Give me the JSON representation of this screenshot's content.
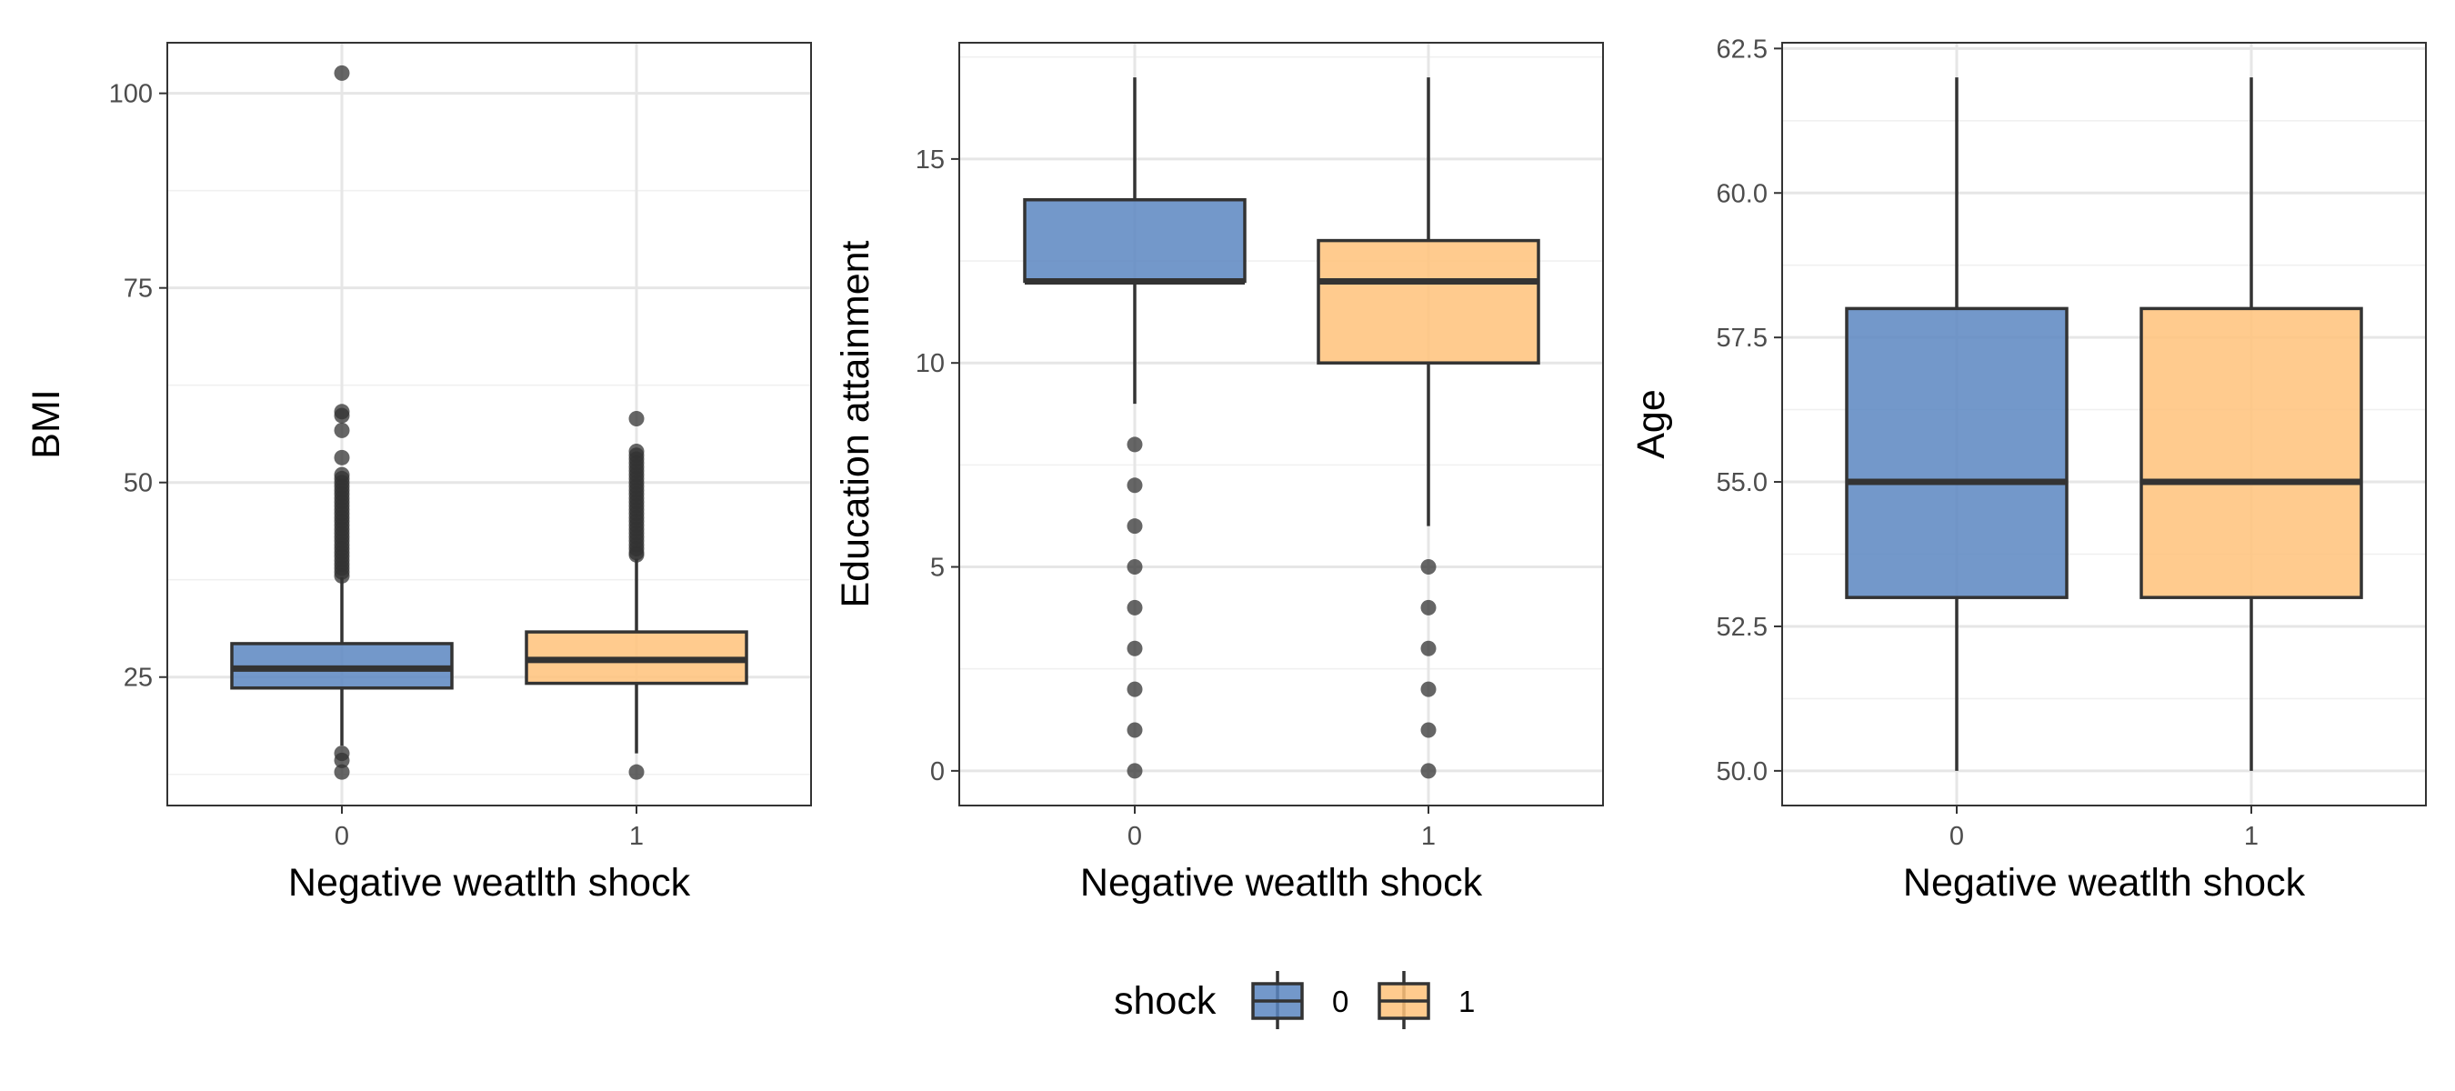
{
  "legend": {
    "title": "shock",
    "items": [
      {
        "label": "0",
        "color": "#5b86c1"
      },
      {
        "label": "1",
        "color": "#ffc27a"
      }
    ]
  },
  "chart_data": [
    {
      "type": "box",
      "xlabel": "Negative weatlth shock",
      "ylabel": "BMI",
      "ylim": [
        8.5,
        106.5
      ],
      "ticks": [
        25,
        50,
        75,
        100
      ],
      "tick_labels": [
        "25",
        "50",
        "75",
        "100"
      ],
      "minor_ticks": [
        12.5,
        37.5,
        62.5,
        87.5
      ],
      "categories": [
        "0",
        "1"
      ],
      "boxes": [
        {
          "group": "0",
          "q1": 23.6,
          "median": 26.1,
          "q3": 29.3,
          "whisker_low": 16.2,
          "whisker_high": 37.8,
          "outliers": [
            102.6,
            59.1,
            58.6,
            56.7,
            53.2,
            51.0,
            50.5,
            50.0,
            49.5,
            49.0,
            48.5,
            48.0,
            47.5,
            47.0,
            46.5,
            46.0,
            45.5,
            45.0,
            44.5,
            44.0,
            43.5,
            43.0,
            42.5,
            42.0,
            41.5,
            41.0,
            40.5,
            40.0,
            39.5,
            39.0,
            38.5,
            38.0,
            15.2,
            14.3,
            12.8
          ]
        },
        {
          "group": "1",
          "q1": 24.2,
          "median": 27.2,
          "q3": 30.8,
          "whisker_low": 15.2,
          "whisker_high": 40.2,
          "outliers": [
            58.2,
            54.0,
            53.5,
            53.0,
            52.5,
            52.0,
            51.5,
            51.0,
            50.5,
            50.0,
            49.5,
            49.0,
            48.5,
            48.0,
            47.5,
            47.0,
            46.5,
            46.0,
            45.5,
            45.0,
            44.5,
            44.0,
            43.5,
            43.0,
            42.5,
            42.0,
            41.5,
            41.0,
            40.7,
            12.8
          ]
        }
      ]
    },
    {
      "type": "box",
      "xlabel": "Negative weatlth shock",
      "ylabel": "Education attainment",
      "ylim": [
        -0.85,
        17.85
      ],
      "ticks": [
        0,
        5,
        10,
        15
      ],
      "tick_labels": [
        "0",
        "5",
        "10",
        "15"
      ],
      "minor_ticks": [
        2.5,
        7.5,
        12.5,
        17.5
      ],
      "categories": [
        "0",
        "1"
      ],
      "boxes": [
        {
          "group": "0",
          "q1": 12,
          "median": 12,
          "q3": 14,
          "whisker_low": 9,
          "whisker_high": 17,
          "outliers": [
            8,
            7,
            6,
            5,
            4,
            3,
            2,
            1,
            0
          ]
        },
        {
          "group": "1",
          "q1": 10,
          "median": 12,
          "q3": 13,
          "whisker_low": 6,
          "whisker_high": 17,
          "outliers": [
            5,
            4,
            3,
            2,
            1,
            0
          ]
        }
      ]
    },
    {
      "type": "box",
      "xlabel": "Negative weatlth shock",
      "ylabel": "Age",
      "ylim": [
        49.4,
        62.6
      ],
      "ticks": [
        50.0,
        52.5,
        55.0,
        57.5,
        60.0,
        62.5
      ],
      "tick_labels": [
        "50.0",
        "52.5",
        "55.0",
        "57.5",
        "60.0",
        "62.5"
      ],
      "minor_ticks": [
        51.25,
        53.75,
        56.25,
        58.75,
        61.25
      ],
      "categories": [
        "0",
        "1"
      ],
      "boxes": [
        {
          "group": "0",
          "q1": 53,
          "median": 55,
          "q3": 58,
          "whisker_low": 50,
          "whisker_high": 62,
          "outliers": []
        },
        {
          "group": "1",
          "q1": 53,
          "median": 55,
          "q3": 58,
          "whisker_low": 50,
          "whisker_high": 62,
          "outliers": []
        }
      ]
    }
  ]
}
